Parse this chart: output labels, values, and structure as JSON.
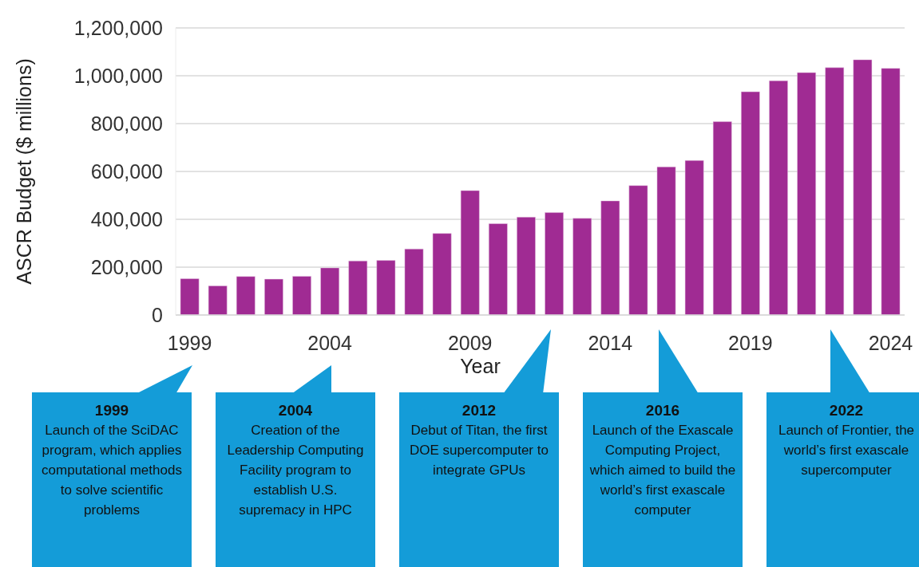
{
  "chart_data": {
    "type": "bar",
    "xlabel": "Year",
    "ylabel": "ASCR Budget ($ millions)",
    "x": [
      1999,
      2000,
      2001,
      2002,
      2003,
      2004,
      2005,
      2006,
      2007,
      2008,
      2009,
      2010,
      2011,
      2012,
      2013,
      2014,
      2015,
      2016,
      2017,
      2018,
      2019,
      2020,
      2021,
      2022,
      2023,
      2024
    ],
    "values": [
      152000,
      122000,
      161000,
      150000,
      162000,
      197000,
      226000,
      228000,
      276000,
      341000,
      520000,
      382000,
      409000,
      428000,
      404000,
      477000,
      541000,
      619000,
      646000,
      808000,
      933000,
      979000,
      1013000,
      1034000,
      1067000,
      1031000
    ],
    "color": "#a02b93",
    "xlim": [
      1998.5,
      2024.5
    ],
    "xticks": [
      1999,
      2004,
      2009,
      2014,
      2019,
      2024
    ],
    "ylim": [
      0,
      1200000
    ],
    "yticks": [
      {
        "value": 0,
        "label": "0"
      },
      {
        "value": 200000,
        "label": "200,000"
      },
      {
        "value": 400000,
        "label": "400,000"
      },
      {
        "value": 600000,
        "label": "600,000"
      },
      {
        "value": 800000,
        "label": "800,000"
      },
      {
        "value": 1000000,
        "label": "1,000,000"
      },
      {
        "value": 1200000,
        "label": "1,200,000"
      }
    ],
    "grid": "y",
    "annotations": [
      "1999\nLaunch of the SciDAC program, which applies computational methods to solve scientific problems",
      "2004\nCreation of the Leadership Computing Facility program to establish U.S. supremacy in HPC",
      "2012\nDebut of Titan, the first DOE supercomputer to integrate GPUs",
      "2016\nLaunch of the Exascale Computing Project, which aimed to build the world’s first exascale computer",
      "2022\nLaunch of Frontier, the world’s first exascale supercomputer"
    ]
  }
}
